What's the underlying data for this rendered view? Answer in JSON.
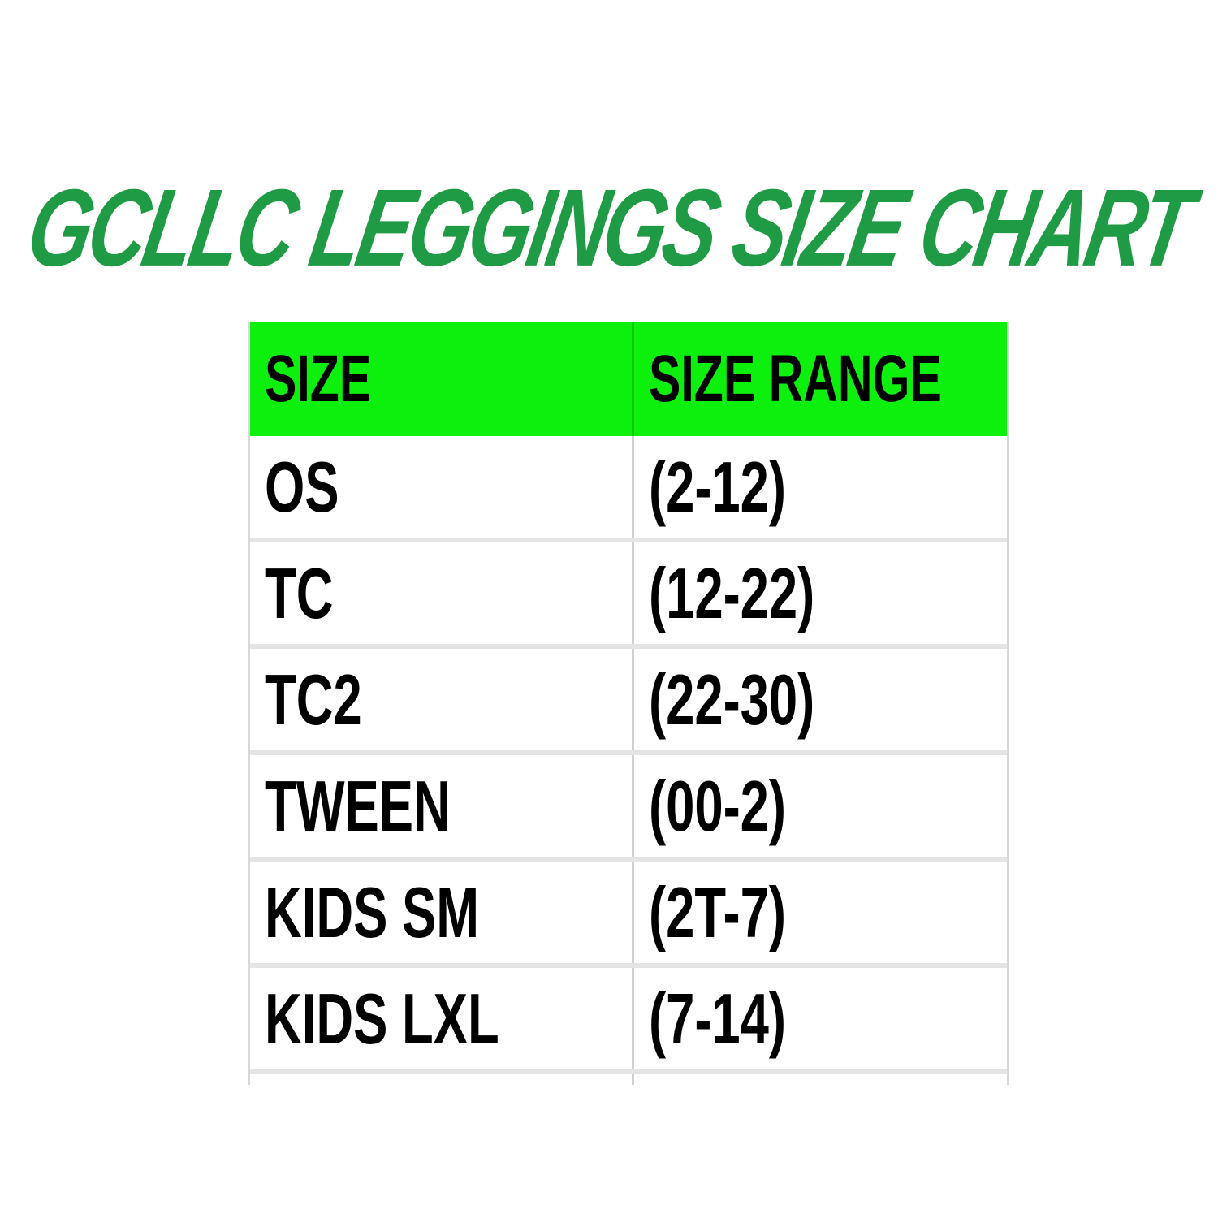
{
  "page": {
    "background_color": "#ffffff"
  },
  "title": {
    "text": "GCLLC LEGGINGS SIZE CHART",
    "color": "#1f9b45"
  },
  "table": {
    "header": {
      "size_label": "SIZE",
      "range_label": "SIZE RANGE",
      "bg_color": "#0df00d",
      "text_color": "#000000"
    },
    "rows": [
      {
        "size": "OS",
        "range": "(2-12)"
      },
      {
        "size": "TC",
        "range": "(12-22)"
      },
      {
        "size": "TC2",
        "range": "(22-30)"
      },
      {
        "size": "TWEEN",
        "range": "(00-2)"
      },
      {
        "size": "KIDS SM",
        "range": "(2T-7)"
      },
      {
        "size": "KIDS LXL",
        "range": "(7-14)"
      }
    ]
  },
  "chart_data": {
    "type": "table",
    "title": "GCLLC LEGGINGS SIZE CHART",
    "columns": [
      "SIZE",
      "SIZE RANGE"
    ],
    "rows": [
      [
        "OS",
        "(2-12)"
      ],
      [
        "TC",
        "(12-22)"
      ],
      [
        "TC2",
        "(22-30)"
      ],
      [
        "TWEEN",
        "(00-2)"
      ],
      [
        "KIDS SM",
        "(2T-7)"
      ],
      [
        "KIDS LXL",
        "(7-14)"
      ]
    ]
  }
}
